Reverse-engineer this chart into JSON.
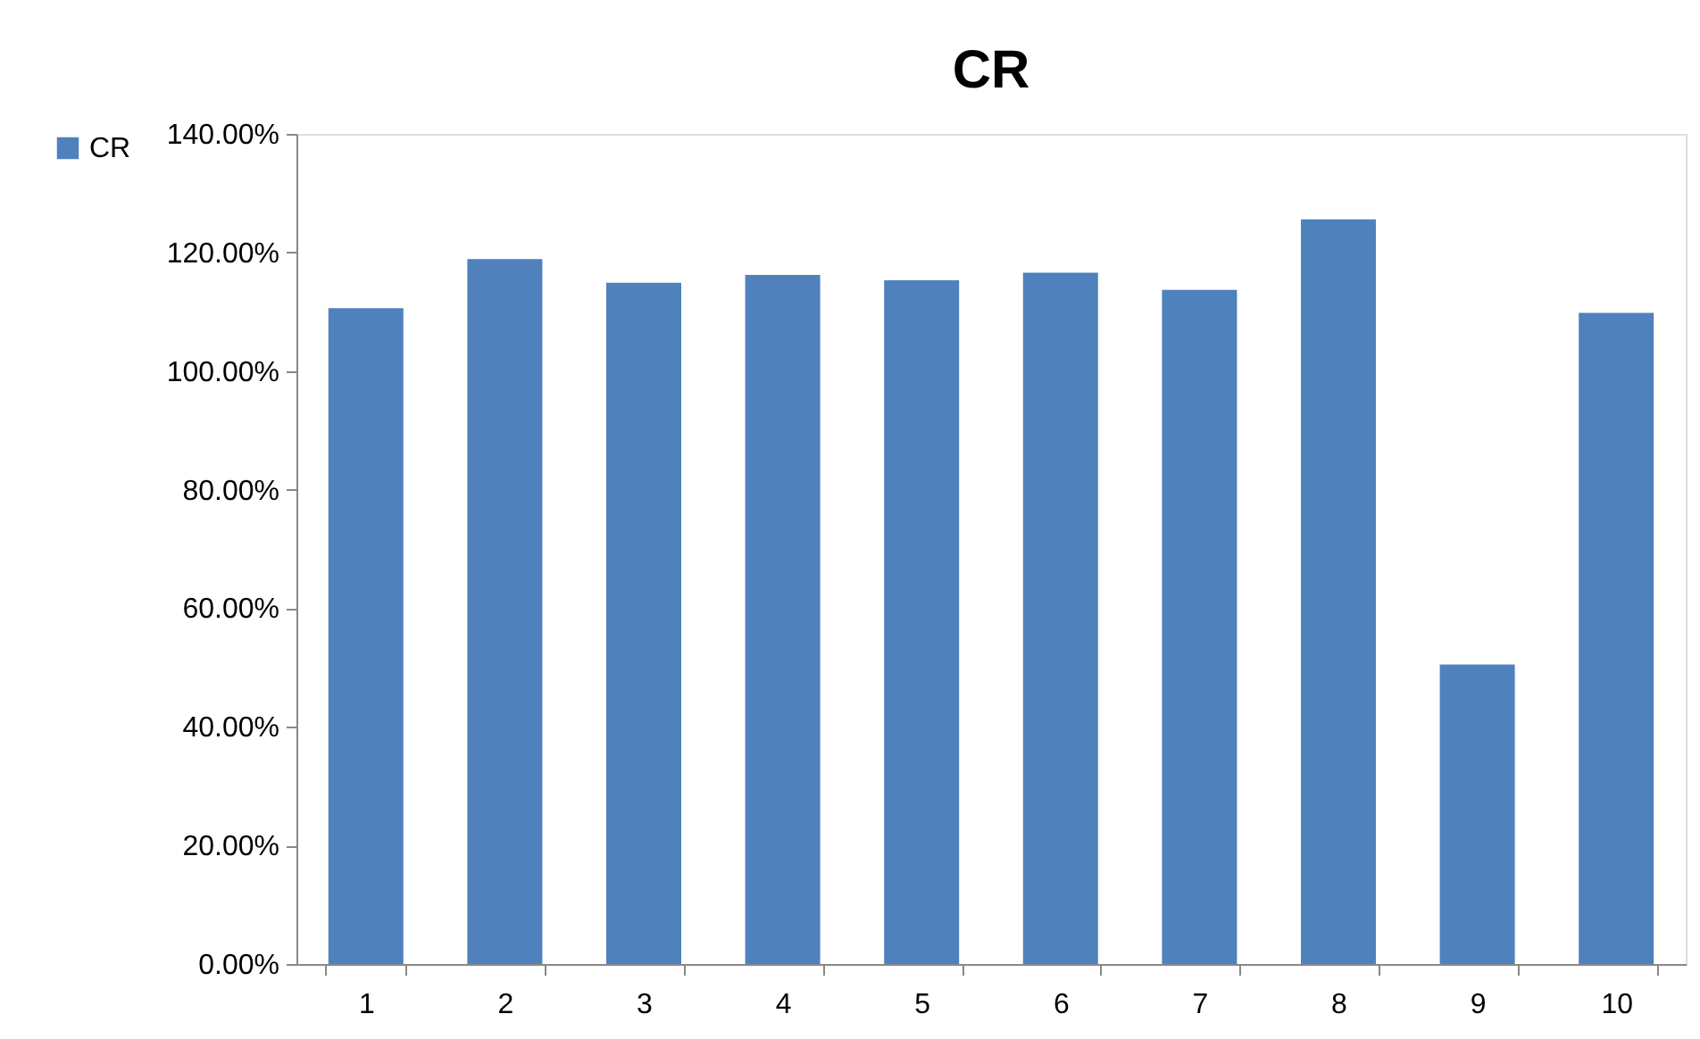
{
  "chart_data": {
    "type": "bar",
    "title": "CR",
    "categories": [
      "1",
      "2",
      "3",
      "4",
      "5",
      "6",
      "7",
      "8",
      "9",
      "10"
    ],
    "series": [
      {
        "name": "CR",
        "color": "#4f81bd",
        "values": [
          110.6,
          118.9,
          114.9,
          116.2,
          115.3,
          116.6,
          113.7,
          125.6,
          50.5,
          109.8
        ]
      }
    ],
    "ylim": [
      0,
      140
    ],
    "yticks": [
      {
        "value": 0,
        "label": "0.00%"
      },
      {
        "value": 20,
        "label": "20.00%"
      },
      {
        "value": 40,
        "label": "40.00%"
      },
      {
        "value": 60,
        "label": "60.00%"
      },
      {
        "value": 80,
        "label": "80.00%"
      },
      {
        "value": 100,
        "label": "100.00%"
      },
      {
        "value": 120,
        "label": "120.00%"
      },
      {
        "value": 140,
        "label": "140.00%"
      }
    ],
    "grid": false,
    "legend": "left"
  }
}
